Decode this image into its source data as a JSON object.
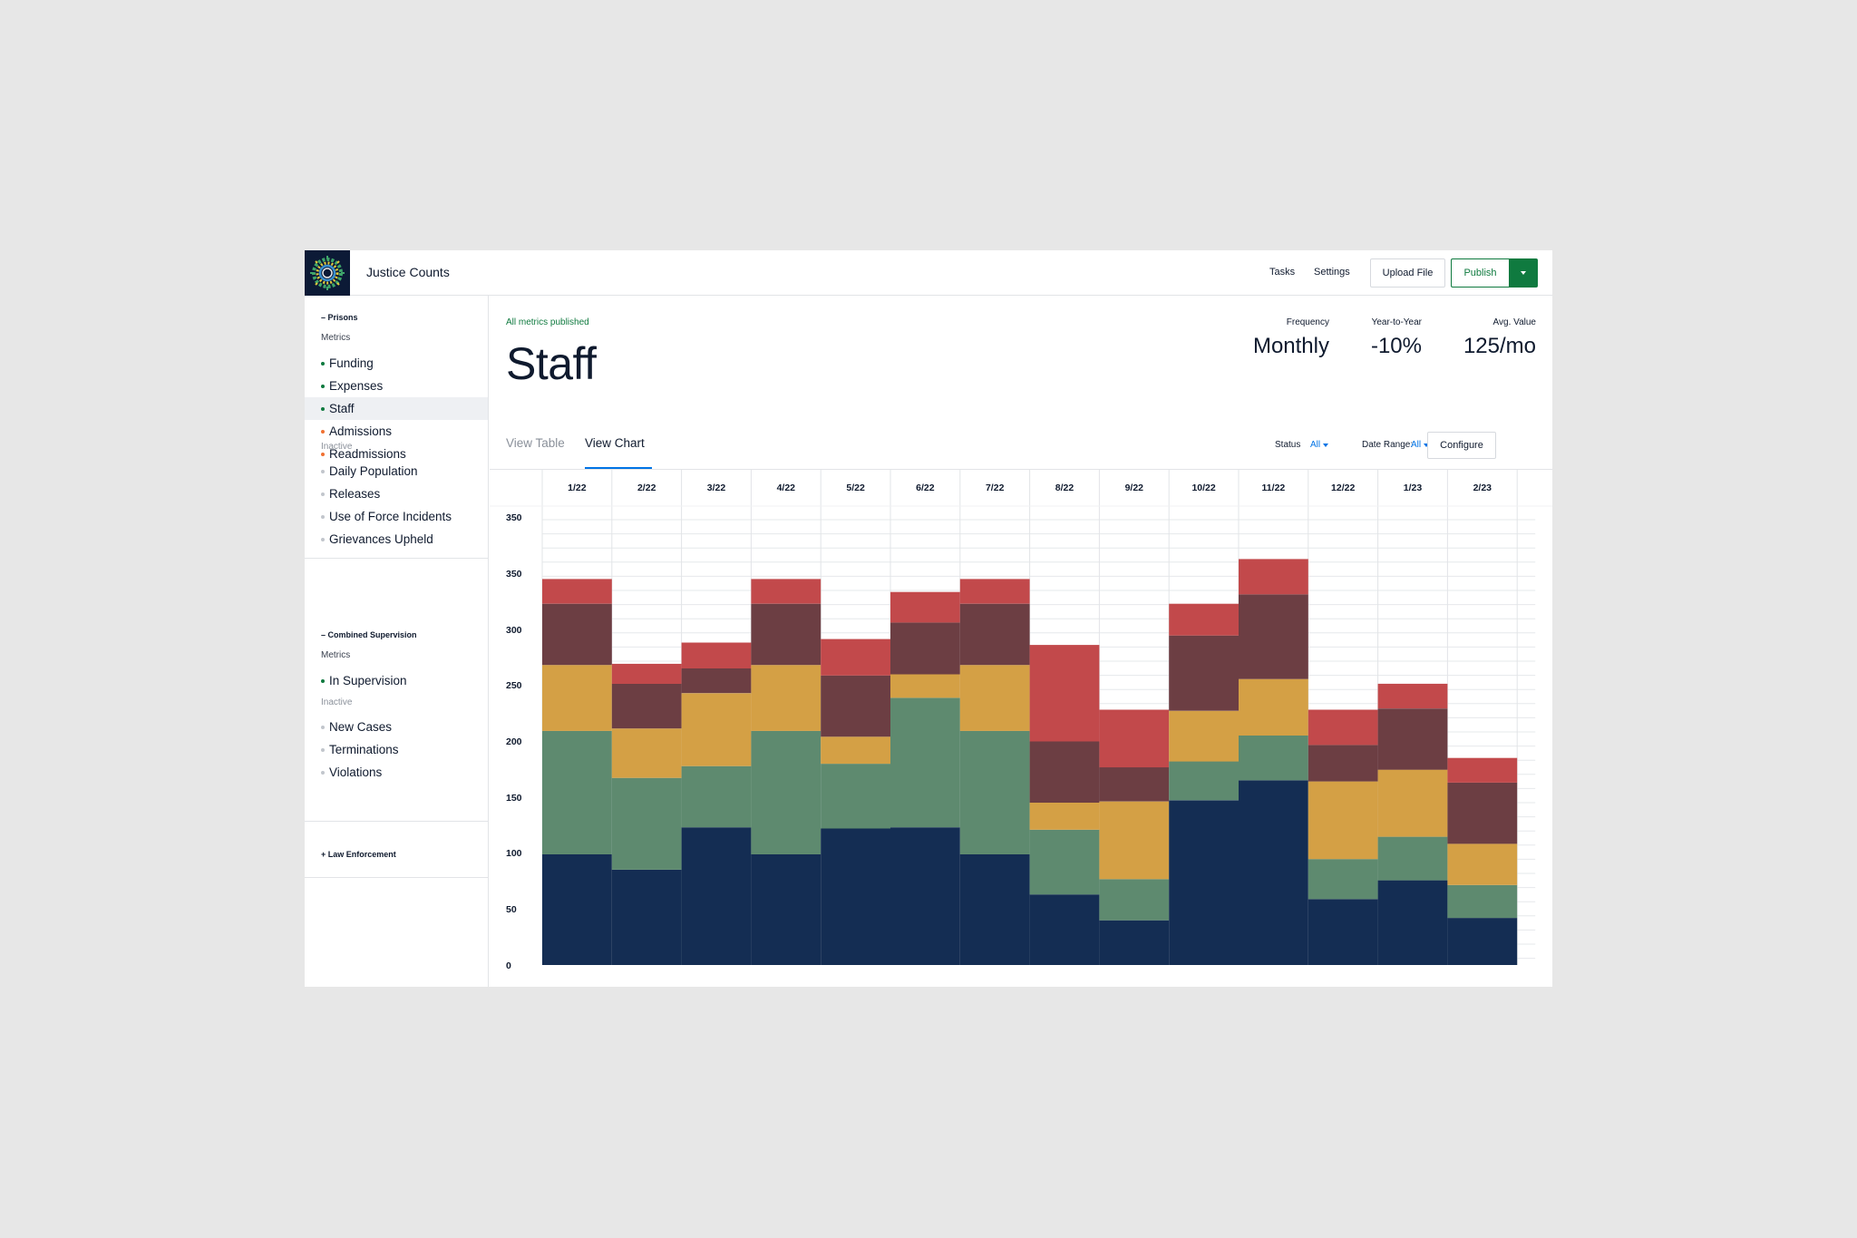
{
  "header": {
    "app_title": "Justice Counts",
    "tasks_label": "Tasks",
    "settings_label": "Settings",
    "upload_label": "Upload File",
    "publish_label": "Publish"
  },
  "sidebar": {
    "prisons": {
      "title": "– Prisons",
      "metrics_label": "Metrics",
      "metrics": [
        {
          "label": "Funding",
          "status": "published"
        },
        {
          "label": "Expenses",
          "status": "published"
        },
        {
          "label": "Staff",
          "status": "published"
        },
        {
          "label": "Admissions",
          "status": "draft"
        },
        {
          "label": "Readmissions",
          "status": "draft"
        }
      ],
      "inactive_label": "Inactive",
      "inactive": [
        "Daily Population",
        "Releases",
        "Use of Force Incidents",
        "Grievances Upheld"
      ]
    },
    "supervision": {
      "title": "– Combined Supervision",
      "metrics_label": "Metrics",
      "metrics": [
        {
          "label": "In Supervision",
          "status": "published"
        }
      ],
      "inactive_label": "Inactive",
      "inactive": [
        "New Cases",
        "Terminations",
        "Violations"
      ]
    },
    "law_enforcement": {
      "title": "+ Law Enforcement"
    }
  },
  "main": {
    "status_text": "All metrics published",
    "title": "Staff",
    "stats": {
      "frequency_label": "Frequency",
      "frequency_value": "Monthly",
      "yoy_label": "Year-to-Year",
      "yoy_value": "-10%",
      "avg_label": "Avg. Value",
      "avg_value": "125/mo"
    },
    "tabs": {
      "table": "View Table",
      "chart": "View Chart"
    },
    "filters": {
      "status_label": "Status",
      "status_value": "All",
      "date_label": "Date Range:",
      "date_value": "All",
      "configure_label": "Configure"
    }
  },
  "colors": {
    "published_dot": "#0f7a3f",
    "draft_dot": "#f07132",
    "inactive_dot": "#c2c6cc",
    "accent": "#0073e5",
    "publish_green": "#0f7a3f",
    "series": [
      "#142d53",
      "#5e8a6f",
      "#d4a045",
      "#6c3e43",
      "#c2494b"
    ]
  },
  "chart_data": {
    "type": "bar",
    "stacked": true,
    "categories": [
      "1/22",
      "2/22",
      "3/22",
      "4/22",
      "5/22",
      "6/22",
      "7/22",
      "8/22",
      "9/22",
      "10/22",
      "11/22",
      "12/22",
      "1/23",
      "2/23"
    ],
    "series": [
      {
        "values": [
          94,
          81,
          117,
          94,
          116,
          117,
          94,
          60,
          38,
          140,
          157,
          56,
          72,
          40
        ]
      },
      {
        "values": [
          105,
          78,
          52,
          105,
          55,
          110,
          105,
          55,
          35,
          33,
          38,
          34,
          37,
          28
        ]
      },
      {
        "values": [
          56,
          42,
          62,
          56,
          23,
          20,
          56,
          23,
          66,
          43,
          48,
          66,
          57,
          35
        ]
      },
      {
        "values": [
          52,
          38,
          21,
          52,
          52,
          44,
          52,
          52,
          29,
          64,
          72,
          31,
          52,
          52
        ]
      },
      {
        "values": [
          21,
          17,
          22,
          21,
          31,
          26,
          21,
          82,
          49,
          27,
          30,
          30,
          21,
          21
        ]
      }
    ],
    "y_ticks": [
      "0",
      "50",
      "100",
      "150",
      "200",
      "250",
      "300",
      "350",
      "350"
    ],
    "ylim": [
      0,
      390
    ],
    "grid": true
  }
}
